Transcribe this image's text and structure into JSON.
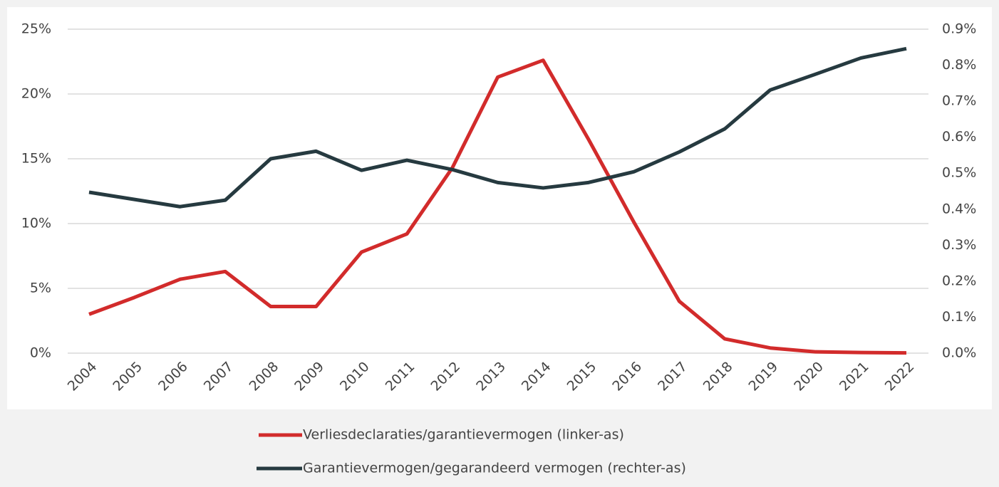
{
  "chart_data": {
    "type": "line",
    "categories": [
      "2004",
      "2005",
      "2006",
      "2007",
      "2008",
      "2009",
      "2010",
      "2011",
      "2012",
      "2013",
      "2014",
      "2015",
      "2016",
      "2017",
      "2018",
      "2019",
      "2020",
      "2021",
      "2022"
    ],
    "series": [
      {
        "name": "Verliesdeclaraties/garantievermogen (linker-as)",
        "color": "#d22b2b",
        "axis": "y",
        "values": [
          3.0,
          4.3,
          5.7,
          6.3,
          3.6,
          3.6,
          7.8,
          9.2,
          14.3,
          21.3,
          22.6,
          16.5,
          10.1,
          4.0,
          1.1,
          0.4,
          0.1,
          0.05,
          0.02
        ]
      },
      {
        "name": "Garantievermogen/gegarandeerd vermogen (rechter-as)",
        "color": "#263a40",
        "axis": "y2",
        "values": [
          0.447,
          0.427,
          0.407,
          0.425,
          0.54,
          0.561,
          0.508,
          0.536,
          0.51,
          0.474,
          0.459,
          0.474,
          0.504,
          0.559,
          0.623,
          0.731,
          0.775,
          0.82,
          0.846
        ]
      }
    ],
    "ylim": [
      0,
      25
    ],
    "yticks": [
      {
        "value": 0,
        "label": "0%"
      },
      {
        "value": 5,
        "label": "5%"
      },
      {
        "value": 10,
        "label": "10%"
      },
      {
        "value": 15,
        "label": "15%"
      },
      {
        "value": 20,
        "label": "20%"
      },
      {
        "value": 25,
        "label": "25%"
      }
    ],
    "y2lim": [
      0,
      0.9
    ],
    "y2ticks": [
      {
        "value": 0,
        "label": "0.0%"
      },
      {
        "value": 0.1,
        "label": "0.1%"
      },
      {
        "value": 0.2,
        "label": "0.2%"
      },
      {
        "value": 0.3,
        "label": "0.3%"
      },
      {
        "value": 0.4,
        "label": "0.4%"
      },
      {
        "value": 0.5,
        "label": "0.5%"
      },
      {
        "value": 0.6,
        "label": "0.6%"
      },
      {
        "value": 0.7,
        "label": "0.7%"
      },
      {
        "value": 0.8,
        "label": "0.8%"
      },
      {
        "value": 0.9,
        "label": "0.9%"
      }
    ],
    "grid": true,
    "legend": "bottom"
  }
}
